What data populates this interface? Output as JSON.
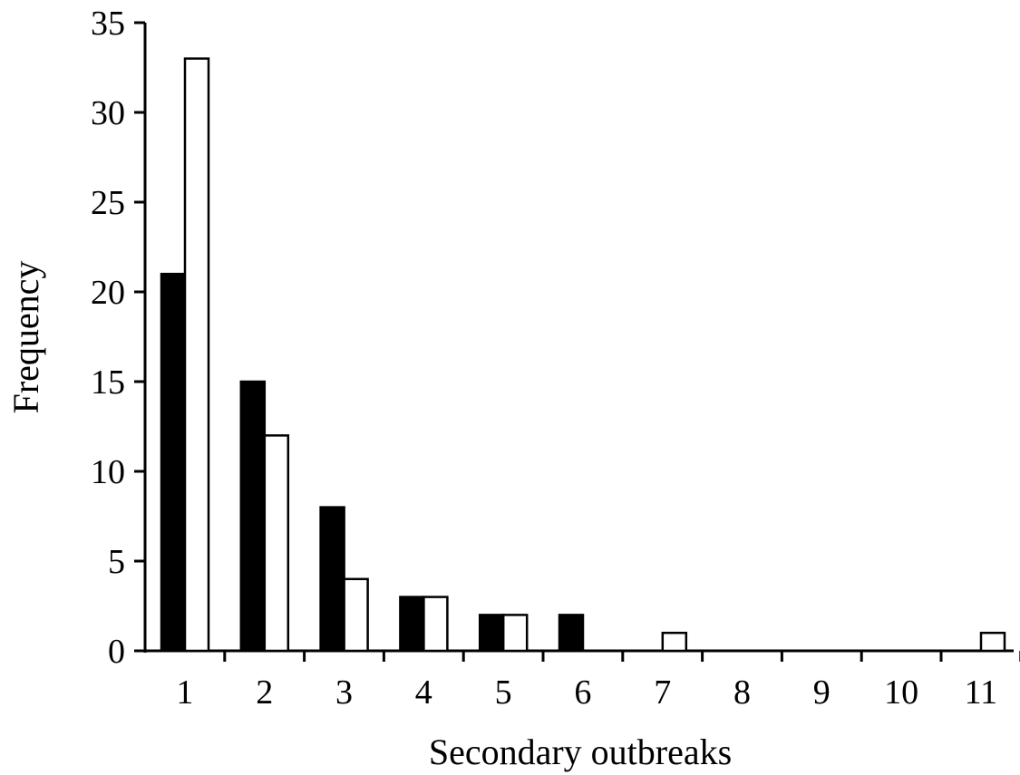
{
  "chart_data": {
    "type": "bar",
    "title": "",
    "xlabel": "Secondary outbreaks",
    "ylabel": "Frequency",
    "categories": [
      "1",
      "2",
      "3",
      "4",
      "5",
      "6",
      "7",
      "8",
      "9",
      "10",
      "11"
    ],
    "series": [
      {
        "color": "#000000",
        "values": [
          21,
          15,
          8,
          3,
          2,
          2,
          0,
          0,
          0,
          0,
          0
        ]
      },
      {
        "color": "#ffffff",
        "values": [
          33,
          12,
          4,
          3,
          2,
          0,
          1,
          0,
          0,
          0,
          1
        ]
      }
    ],
    "ylim": [
      0,
      35
    ],
    "yticks": [
      "0",
      "5",
      "10",
      "15",
      "20",
      "25",
      "30",
      "35"
    ],
    "grid": false,
    "legend": "none"
  }
}
